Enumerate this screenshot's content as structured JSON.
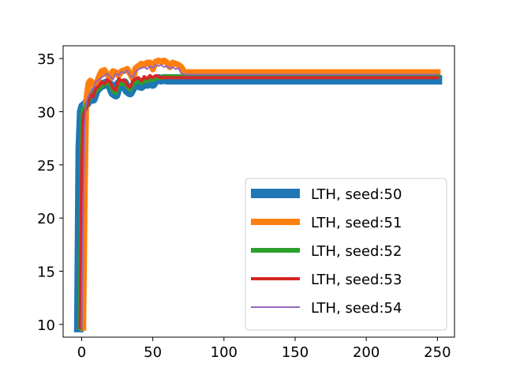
{
  "chart_data": {
    "type": "line",
    "title": "",
    "xlabel": "",
    "ylabel": "",
    "xlim": [
      -13,
      262
    ],
    "ylim": [
      8.8,
      36.2
    ],
    "xticks": [
      0,
      50,
      100,
      150,
      200,
      250
    ],
    "yticks": [
      10,
      15,
      20,
      25,
      30,
      35
    ],
    "grid": false,
    "legend_position": "lower-right",
    "series": [
      {
        "name": "LTH, seed:50",
        "color": "#1f77b4",
        "linewidth": 12,
        "x": [
          -2,
          -1,
          0,
          1,
          2,
          3,
          4,
          6,
          8,
          10,
          12,
          14,
          16,
          18,
          20,
          22,
          24,
          26,
          28,
          30,
          32,
          34,
          36,
          38,
          40,
          42,
          44,
          46,
          48,
          50,
          52,
          54,
          56,
          58,
          60,
          62,
          64,
          66,
          68,
          70,
          72,
          74,
          80,
          100,
          150,
          200,
          250
        ],
        "y": [
          9.7,
          26.5,
          30.0,
          30.5,
          30.6,
          30.7,
          30.9,
          31.5,
          31.2,
          32.0,
          32.3,
          32.5,
          32.6,
          32.7,
          32.5,
          31.8,
          31.6,
          32.6,
          32.4,
          32.7,
          32.0,
          31.8,
          32.3,
          32.6,
          32.5,
          32.4,
          32.8,
          32.6,
          32.9,
          32.6,
          33.0,
          33.1,
          33.0,
          33.1,
          33.0,
          33.0,
          33.0,
          33.0,
          33.0,
          33.0,
          33.0,
          33.0,
          33.0,
          33.0,
          33.0,
          33.0,
          33.0
        ]
      },
      {
        "name": "LTH, seed:51",
        "color": "#ff7f0e",
        "linewidth": 8,
        "x": [
          1,
          2,
          3,
          4,
          5,
          6,
          7,
          8,
          10,
          12,
          14,
          16,
          18,
          20,
          22,
          24,
          26,
          28,
          30,
          32,
          34,
          36,
          38,
          40,
          42,
          44,
          46,
          48,
          50,
          52,
          54,
          56,
          58,
          60,
          62,
          64,
          66,
          68,
          70,
          72,
          80,
          100,
          150,
          200,
          250
        ],
        "y": [
          9.7,
          22.0,
          30.5,
          31.8,
          32.7,
          32.9,
          32.8,
          32.6,
          32.4,
          33.2,
          33.8,
          33.9,
          33.5,
          33.2,
          33.8,
          33.7,
          33.4,
          33.8,
          33.9,
          34.0,
          33.6,
          33.1,
          34.1,
          34.3,
          34.5,
          34.4,
          34.6,
          34.6,
          34.0,
          34.7,
          34.8,
          34.7,
          34.8,
          34.6,
          34.2,
          34.6,
          34.5,
          34.4,
          34.2,
          33.7,
          33.7,
          33.7,
          33.7,
          33.7,
          33.7
        ]
      },
      {
        "name": "LTH, seed:52",
        "color": "#2ca02c",
        "linewidth": 6,
        "x": [
          -1,
          0,
          1,
          2,
          3,
          4,
          6,
          8,
          10,
          12,
          14,
          16,
          18,
          20,
          22,
          24,
          26,
          28,
          30,
          32,
          34,
          36,
          38,
          40,
          42,
          44,
          46,
          48,
          50,
          52,
          54,
          56,
          58,
          60,
          62,
          64,
          66,
          68,
          70,
          80,
          100,
          150,
          200,
          250
        ],
        "y": [
          9.7,
          26.0,
          30.2,
          30.3,
          30.4,
          30.8,
          31.4,
          31.6,
          32.0,
          32.2,
          32.4,
          32.6,
          32.8,
          32.6,
          32.0,
          31.8,
          32.8,
          32.6,
          32.9,
          32.4,
          32.1,
          32.6,
          32.8,
          32.9,
          32.7,
          33.0,
          32.9,
          33.1,
          33.0,
          33.2,
          33.2,
          33.2,
          33.3,
          33.3,
          33.3,
          33.3,
          33.3,
          33.3,
          33.3,
          33.3,
          33.3,
          33.3,
          33.3,
          33.3
        ]
      },
      {
        "name": "LTH, seed:53",
        "color": "#d62728",
        "linewidth": 4,
        "x": [
          -1,
          0,
          1,
          2,
          3,
          4,
          6,
          8,
          10,
          12,
          14,
          16,
          18,
          20,
          22,
          24,
          26,
          28,
          30,
          32,
          34,
          36,
          38,
          40,
          42,
          44,
          46,
          48,
          50,
          52,
          54,
          56,
          58,
          60,
          62,
          64,
          66,
          68,
          70,
          80,
          100,
          150,
          200,
          250
        ],
        "y": [
          9.7,
          25.0,
          29.5,
          30.0,
          30.2,
          30.6,
          31.6,
          31.4,
          32.2,
          32.4,
          32.8,
          32.6,
          33.0,
          32.8,
          32.2,
          32.0,
          33.1,
          32.9,
          33.0,
          32.5,
          32.3,
          32.9,
          33.1,
          33.2,
          32.9,
          33.3,
          33.1,
          33.4,
          33.2,
          33.4,
          33.3,
          33.2,
          33.2,
          33.2,
          33.2,
          33.2,
          33.2,
          33.2,
          33.2,
          33.2,
          33.2,
          33.2,
          33.2,
          33.2
        ]
      },
      {
        "name": "LTH, seed:54",
        "color": "#9467bd",
        "linewidth": 2,
        "x": [
          0,
          1,
          2,
          3,
          4,
          6,
          8,
          10,
          12,
          14,
          16,
          18,
          20,
          22,
          24,
          26,
          28,
          30,
          32,
          34,
          36,
          38,
          40,
          42,
          44,
          46,
          48,
          50,
          52,
          54,
          56,
          58,
          60,
          62,
          64,
          66,
          68,
          70,
          72,
          80,
          100,
          150,
          200,
          250
        ],
        "y": [
          9.7,
          20.0,
          28.5,
          30.5,
          31.2,
          31.8,
          32.1,
          32.8,
          33.0,
          33.2,
          33.4,
          33.6,
          33.3,
          33.0,
          33.6,
          33.4,
          33.8,
          33.6,
          33.9,
          33.4,
          33.2,
          33.8,
          34.0,
          34.1,
          34.2,
          34.0,
          34.3,
          34.1,
          34.4,
          34.3,
          34.4,
          34.2,
          34.3,
          34.1,
          34.2,
          34.0,
          34.1,
          33.6,
          33.5,
          33.5,
          33.5,
          33.5,
          33.5,
          33.5
        ]
      }
    ]
  }
}
